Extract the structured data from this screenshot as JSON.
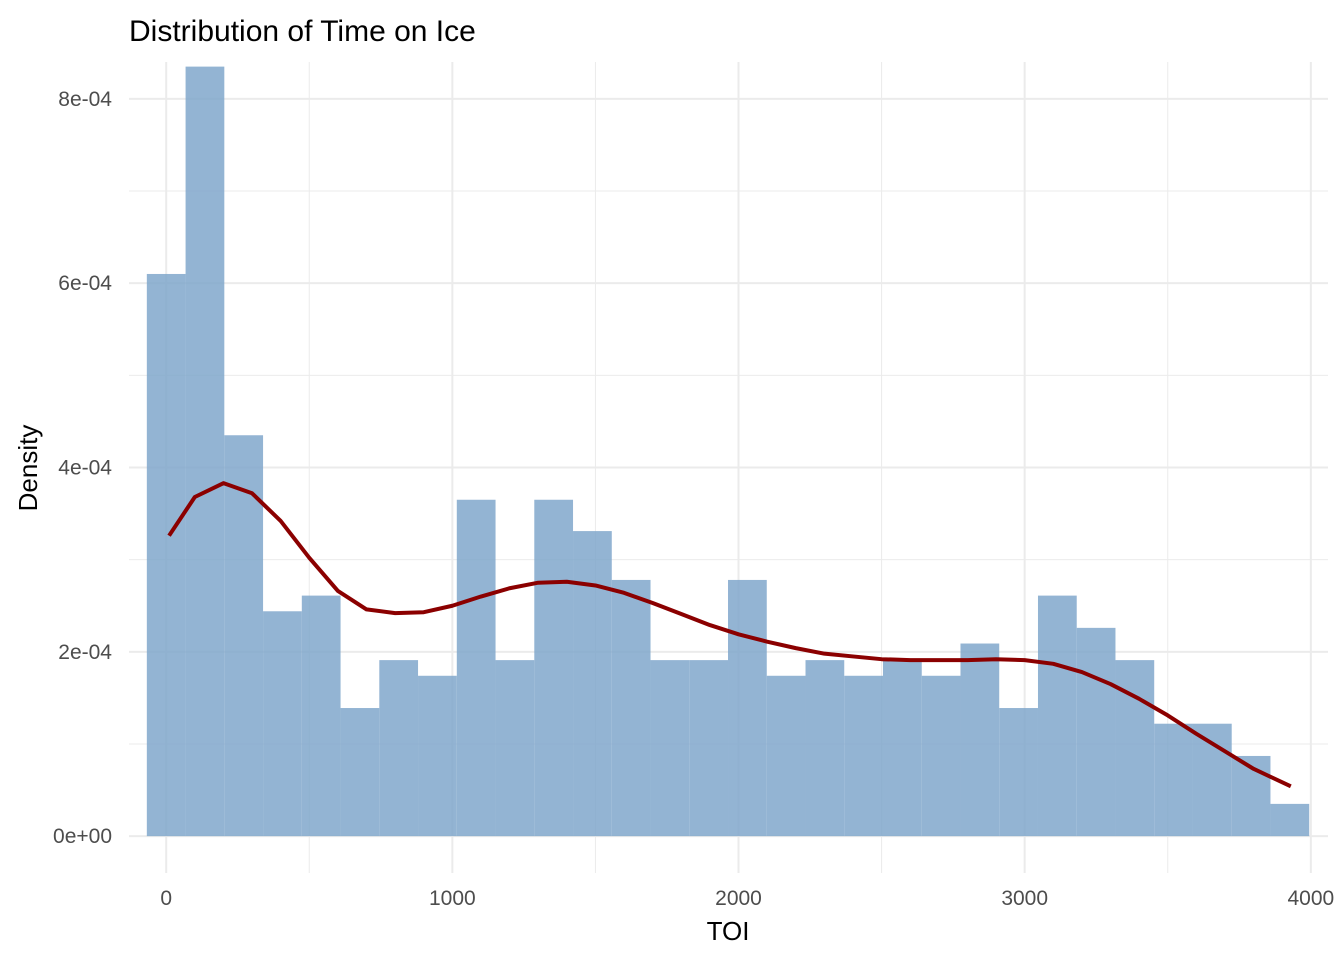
{
  "chart_data": {
    "type": "bar",
    "title": "Distribution of Time on Ice",
    "xlabel": "TOI",
    "ylabel": "Density",
    "xlim": [
      -130,
      4060
    ],
    "ylim": [
      -4e-05,
      0.00084
    ],
    "x_ticks": [
      {
        "value": 0,
        "label": "0"
      },
      {
        "value": 1000,
        "label": "1000"
      },
      {
        "value": 2000,
        "label": "2000"
      },
      {
        "value": 3000,
        "label": "3000"
      },
      {
        "value": 4000,
        "label": "4000"
      }
    ],
    "y_ticks": [
      {
        "value": 0,
        "label": "0e+00"
      },
      {
        "value": 0.0002,
        "label": "2e-04"
      },
      {
        "value": 0.0004,
        "label": "4e-04"
      },
      {
        "value": 0.0006,
        "label": "6e-04"
      },
      {
        "value": 0.0008,
        "label": "8e-04"
      }
    ],
    "grid": true,
    "colors": {
      "bars": "#7ba4c9",
      "density_line": "#8b0000",
      "grid": "#ebebeb"
    },
    "histogram": {
      "bin_width": 135.4,
      "first_bin_start": -67.7,
      "density": [
        0.00061,
        0.000835,
        0.000435,
        0.000244,
        0.000261,
        0.000139,
        0.000191,
        0.000174,
        0.000365,
        0.000191,
        0.000365,
        0.000331,
        0.000278,
        0.000191,
        0.000191,
        0.000278,
        0.000174,
        0.000191,
        0.000174,
        0.000191,
        0.000174,
        0.000209,
        0.000139,
        0.000261,
        0.000226,
        0.000191,
        0.000122,
        0.000122,
        8.7e-05,
        3.5e-05
      ]
    },
    "density_curve": {
      "x": [
        10,
        100,
        200,
        300,
        400,
        500,
        600,
        700,
        800,
        900,
        1000,
        1100,
        1200,
        1300,
        1400,
        1500,
        1600,
        1700,
        1800,
        1900,
        2000,
        2100,
        2200,
        2300,
        2400,
        2500,
        2600,
        2700,
        2800,
        2900,
        3000,
        3100,
        3200,
        3300,
        3400,
        3500,
        3600,
        3700,
        3800,
        3930
      ],
      "y": [
        0.000326,
        0.000368,
        0.000383,
        0.000372,
        0.000342,
        0.000302,
        0.000266,
        0.000246,
        0.000242,
        0.000243,
        0.00025,
        0.00026,
        0.000269,
        0.000275,
        0.000276,
        0.000272,
        0.000264,
        0.000253,
        0.000241,
        0.000229,
        0.000219,
        0.000211,
        0.000204,
        0.000198,
        0.000195,
        0.000192,
        0.000191,
        0.000191,
        0.000191,
        0.000192,
        0.000191,
        0.000187,
        0.000178,
        0.000165,
        0.000149,
        0.000131,
        0.000111,
        9.2e-05,
        7.3e-05,
        5.4e-05
      ]
    }
  }
}
